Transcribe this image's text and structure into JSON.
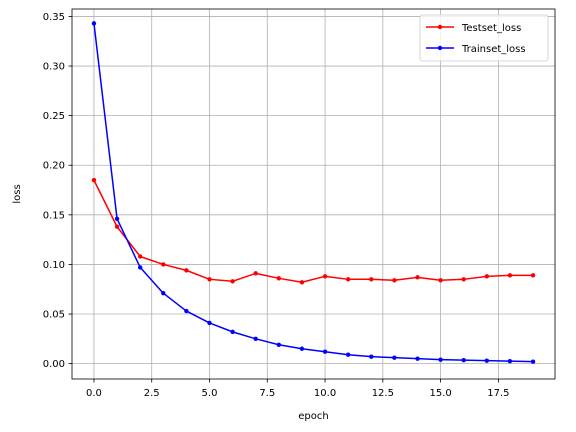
{
  "chart_data": {
    "type": "line",
    "title": "",
    "xlabel": "epoch",
    "ylabel": "loss",
    "xlim": [
      -0.95,
      19.95
    ],
    "ylim": [
      -0.0155,
      0.3575
    ],
    "xticks": [
      0.0,
      2.5,
      5.0,
      7.5,
      10.0,
      12.5,
      15.0,
      17.5
    ],
    "xtick_labels": [
      "0.0",
      "2.5",
      "5.0",
      "7.5",
      "10.0",
      "12.5",
      "15.0",
      "17.5"
    ],
    "yticks": [
      0.0,
      0.05,
      0.1,
      0.15,
      0.2,
      0.25,
      0.3,
      0.35
    ],
    "ytick_labels": [
      "0.00",
      "0.05",
      "0.10",
      "0.15",
      "0.20",
      "0.25",
      "0.30",
      "0.35"
    ],
    "grid": true,
    "legend_position": "top-right",
    "x": [
      0,
      1,
      2,
      3,
      4,
      5,
      6,
      7,
      8,
      9,
      10,
      11,
      12,
      13,
      14,
      15,
      16,
      17,
      18,
      19
    ],
    "series": [
      {
        "name": "Testset_loss",
        "color": "#ff0000",
        "values": [
          0.185,
          0.138,
          0.108,
          0.1,
          0.094,
          0.085,
          0.083,
          0.091,
          0.086,
          0.082,
          0.088,
          0.085,
          0.085,
          0.084,
          0.087,
          0.084,
          0.085,
          0.088,
          0.089,
          0.089
        ]
      },
      {
        "name": "Trainset_loss",
        "color": "#0000ff",
        "values": [
          0.343,
          0.146,
          0.097,
          0.071,
          0.053,
          0.041,
          0.032,
          0.025,
          0.019,
          0.015,
          0.012,
          0.009,
          0.007,
          0.006,
          0.005,
          0.004,
          0.0035,
          0.003,
          0.0025,
          0.002
        ]
      }
    ]
  }
}
